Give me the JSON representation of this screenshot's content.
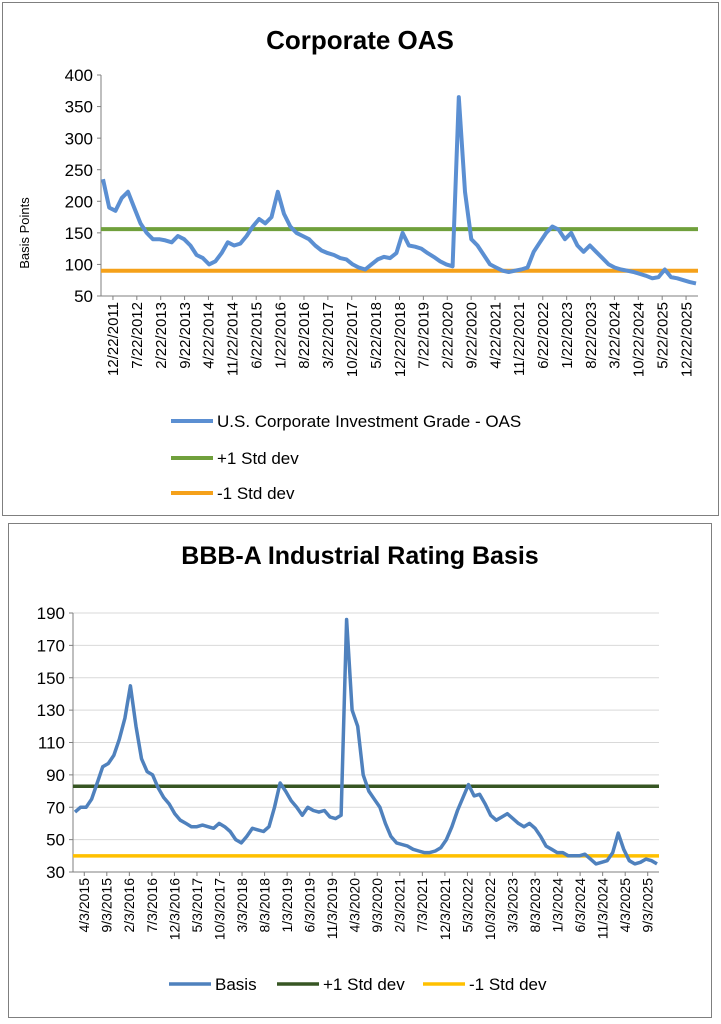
{
  "chart_data": [
    {
      "type": "line",
      "title": "Corporate OAS",
      "ylabel": "Basis Points",
      "xlabel": "",
      "ylim": [
        50,
        400
      ],
      "yticks": [
        "400",
        "350",
        "300",
        "250",
        "200",
        "150",
        "100",
        "50"
      ],
      "xticks": [
        "12/22/2011",
        "7/22/2012",
        "2/22/2013",
        "9/22/2013",
        "4/22/2014",
        "11/22/2014",
        "6/22/2015",
        "1/22/2016",
        "8/22/2016",
        "3/22/2017",
        "10/22/2017",
        "5/22/2018",
        "12/22/2018",
        "7/22/2019",
        "2/22/2020",
        "9/22/2020",
        "4/22/2021",
        "11/22/2021",
        "6/22/2022",
        "1/22/2023",
        "8/22/2023",
        "3/22/2024",
        "10/22/2024",
        "5/22/2025",
        "12/22/2025"
      ],
      "legend_position": "bottom",
      "grid": false,
      "series": [
        {
          "name": "U.S. Corporate Investment Grade - OAS",
          "color": "#5b8fd2",
          "values": [
            235,
            190,
            185,
            205,
            215,
            190,
            165,
            150,
            140,
            140,
            138,
            135,
            145,
            140,
            130,
            115,
            110,
            100,
            105,
            118,
            135,
            130,
            133,
            145,
            160,
            172,
            165,
            175,
            215,
            180,
            160,
            150,
            145,
            140,
            130,
            122,
            118,
            115,
            110,
            108,
            100,
            95,
            92,
            100,
            108,
            112,
            110,
            118,
            150,
            130,
            128,
            125,
            118,
            112,
            105,
            100,
            97,
            365,
            215,
            140,
            130,
            115,
            100,
            95,
            90,
            88,
            90,
            92,
            95,
            120,
            135,
            150,
            160,
            155,
            140,
            150,
            130,
            120,
            130,
            120,
            110,
            100,
            95,
            92,
            90,
            88,
            85,
            82,
            78,
            80,
            92,
            80,
            78,
            75,
            72,
            70
          ]
        },
        {
          "name": "+1 Std dev",
          "color": "#70a03c",
          "constant": 156
        },
        {
          "name": "-1 Std dev",
          "color": "#f5a11a",
          "constant": 90
        }
      ]
    },
    {
      "type": "line",
      "title": "BBB-A Industrial Rating Basis",
      "ylabel": "",
      "xlabel": "",
      "ylim": [
        30,
        190
      ],
      "yticks": [
        "190",
        "170",
        "150",
        "130",
        "110",
        "90",
        "70",
        "50",
        "30"
      ],
      "xticks": [
        "4/3/2015",
        "9/3/2015",
        "2/3/2016",
        "7/3/2016",
        "12/3/2016",
        "5/3/2017",
        "10/3/2017",
        "3/3/2018",
        "8/3/2018",
        "1/3/2019",
        "6/3/2019",
        "11/3/2019",
        "4/3/2020",
        "9/3/2020",
        "2/3/2021",
        "7/3/2021",
        "12/3/2021",
        "5/3/2022",
        "10/3/2022",
        "3/3/2023",
        "8/3/2023",
        "1/3/2024",
        "6/3/2024",
        "11/3/2024",
        "4/3/2025",
        "9/3/2025"
      ],
      "legend_position": "bottom",
      "grid": true,
      "series": [
        {
          "name": "Basis",
          "color": "#4f81bd",
          "values": [
            67,
            70,
            70,
            75,
            85,
            95,
            97,
            102,
            112,
            125,
            145,
            120,
            100,
            92,
            90,
            82,
            76,
            72,
            66,
            62,
            60,
            58,
            58,
            59,
            58,
            57,
            60,
            58,
            55,
            50,
            48,
            52,
            57,
            56,
            55,
            58,
            70,
            85,
            80,
            74,
            70,
            65,
            70,
            68,
            67,
            68,
            64,
            63,
            65,
            186,
            130,
            120,
            90,
            80,
            75,
            70,
            60,
            52,
            48,
            47,
            46,
            44,
            43,
            42,
            42,
            43,
            45,
            50,
            58,
            68,
            76,
            84,
            77,
            78,
            72,
            65,
            62,
            64,
            66,
            63,
            60,
            58,
            60,
            57,
            52,
            46,
            44,
            42,
            42,
            40,
            40,
            40,
            41,
            38,
            35,
            36,
            37,
            42,
            54,
            44,
            37,
            35,
            36,
            38,
            37,
            35
          ]
        },
        {
          "name": "+1 Std dev",
          "color": "#375623",
          "constant": 83
        },
        {
          "name": "-1 Std dev",
          "color": "#ffc000",
          "constant": 40
        }
      ]
    }
  ]
}
